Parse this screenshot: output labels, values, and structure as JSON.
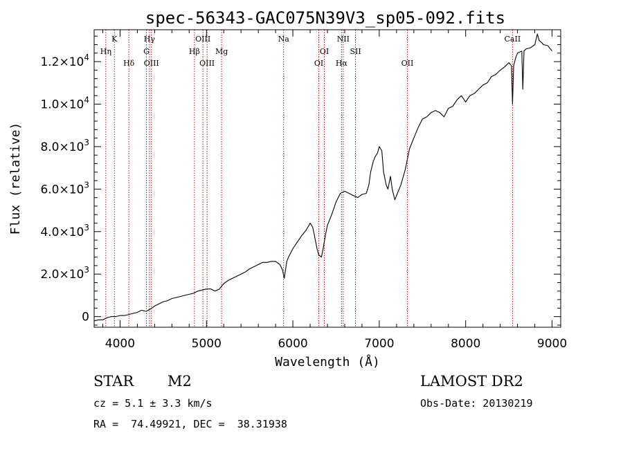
{
  "chart_data": {
    "type": "line",
    "title": "spec-56343-GAC075N39V3_sp05-092.fits",
    "xlabel": "Wavelength (Å)",
    "ylabel": "Flux (relative)",
    "xlim": [
      3700,
      9100
    ],
    "ylim": [
      -500,
      13500
    ],
    "x_ticks": [
      {
        "value": 4000,
        "label": "4000"
      },
      {
        "value": 5000,
        "label": "5000"
      },
      {
        "value": 6000,
        "label": "6000"
      },
      {
        "value": 7000,
        "label": "7000"
      },
      {
        "value": 8000,
        "label": "8000"
      },
      {
        "value": 9000,
        "label": "9000"
      }
    ],
    "y_ticks": [
      {
        "value": 0,
        "mant": "0",
        "exp": ""
      },
      {
        "value": 2000,
        "mant": "2.0×10",
        "exp": "3"
      },
      {
        "value": 4000,
        "mant": "4.0×10",
        "exp": "3"
      },
      {
        "value": 6000,
        "mant": "6.0×10",
        "exp": "3"
      },
      {
        "value": 8000,
        "mant": "8.0×10",
        "exp": "3"
      },
      {
        "value": 10000,
        "mant": "1.0×10",
        "exp": "4"
      },
      {
        "value": 12000,
        "mant": "1.2×10",
        "exp": "4"
      }
    ],
    "grid": false,
    "spectral_lines": [
      {
        "label": "Hη",
        "x": 3835,
        "row": 2
      },
      {
        "label": "K",
        "x": 3934,
        "row": 1
      },
      {
        "label": "Hδ",
        "x": 4102,
        "row": 3
      },
      {
        "label": "Hγ",
        "x": 4340,
        "row": 1
      },
      {
        "label": "G",
        "x": 4305,
        "row": 2
      },
      {
        "label": "OIII",
        "x": 4363,
        "row": 3
      },
      {
        "label": "OIII",
        "x": 4959,
        "row": 1
      },
      {
        "label": "Hβ",
        "x": 4861,
        "row": 2
      },
      {
        "label": "OIII",
        "x": 5007,
        "row": 3
      },
      {
        "label": "Mg",
        "x": 5175,
        "row": 2
      },
      {
        "label": "Na",
        "x": 5893,
        "row": 1
      },
      {
        "label": "OI",
        "x": 6364,
        "row": 2
      },
      {
        "label": "OI",
        "x": 6300,
        "row": 3
      },
      {
        "label": "NII",
        "x": 6583,
        "row": 1
      },
      {
        "label": "Hα",
        "x": 6563,
        "row": 3
      },
      {
        "label": "SII",
        "x": 6725,
        "row": 2
      },
      {
        "label": "OII",
        "x": 7325,
        "row": 3
      },
      {
        "label": "CaII",
        "x": 8542,
        "row": 1
      }
    ],
    "series": [
      {
        "x": [
          3700,
          3750,
          3800,
          3850,
          3900,
          3950,
          4000,
          4050,
          4100,
          4150,
          4200,
          4250,
          4300,
          4350,
          4400,
          4450,
          4500,
          4550,
          4600,
          4650,
          4700,
          4750,
          4800,
          4850,
          4900,
          4950,
          5000,
          5050,
          5100,
          5150,
          5200,
          5250,
          5300,
          5350,
          5400,
          5450,
          5500,
          5550,
          5600,
          5650,
          5700,
          5750,
          5800,
          5850,
          5880,
          5900,
          5930,
          5950,
          6000,
          6050,
          6100,
          6150,
          6180,
          6200,
          6230,
          6250,
          6280,
          6300,
          6330,
          6350,
          6380,
          6400,
          6450,
          6500,
          6550,
          6600,
          6650,
          6700,
          6750,
          6800,
          6850,
          6880,
          6900,
          6930,
          6950,
          6980,
          7000,
          7030,
          7050,
          7080,
          7100,
          7130,
          7150,
          7180,
          7200,
          7250,
          7300,
          7350,
          7400,
          7450,
          7500,
          7550,
          7600,
          7650,
          7700,
          7750,
          7800,
          7850,
          7900,
          7950,
          8000,
          8050,
          8100,
          8150,
          8200,
          8250,
          8300,
          8350,
          8400,
          8450,
          8500,
          8530,
          8542,
          8555,
          8580,
          8600,
          8650,
          8662,
          8675,
          8700,
          8750,
          8800,
          8830,
          8850,
          8880,
          8900,
          8950,
          9000
        ],
        "y": [
          -200,
          -150,
          -150,
          -50,
          0,
          0,
          50,
          50,
          100,
          150,
          200,
          300,
          250,
          350,
          500,
          600,
          700,
          750,
          850,
          900,
          950,
          1000,
          1050,
          1100,
          1200,
          1250,
          1300,
          1300,
          1200,
          1300,
          1550,
          1700,
          1800,
          1900,
          2000,
          2100,
          2250,
          2350,
          2450,
          2550,
          2550,
          2600,
          2600,
          2450,
          2200,
          1800,
          2600,
          2800,
          3200,
          3500,
          3800,
          4050,
          4250,
          4400,
          4200,
          3800,
          3200,
          2900,
          2800,
          3200,
          3900,
          4300,
          4800,
          5400,
          5800,
          5900,
          5800,
          5700,
          5600,
          5750,
          5800,
          6200,
          6800,
          7300,
          7500,
          7700,
          8000,
          7800,
          6800,
          6200,
          6000,
          6600,
          6000,
          5500,
          5700,
          6200,
          6900,
          7900,
          8400,
          8900,
          9300,
          9400,
          9600,
          9700,
          9600,
          9400,
          9800,
          9900,
          10200,
          10400,
          10100,
          10400,
          10500,
          10700,
          10900,
          11000,
          11300,
          11400,
          11600,
          11750,
          11950,
          11800,
          10000,
          11800,
          12200,
          12400,
          12500,
          10700,
          12500,
          12600,
          12650,
          12800,
          13300,
          13000,
          12900,
          12800,
          12750,
          12500
        ]
      }
    ]
  },
  "info": {
    "class_label": "STAR",
    "subclass": "M2",
    "survey": "LAMOST DR2",
    "cz": "cz = 5.1 ± 3.3 km/s",
    "obs_date": "Obs-Date: 20130219",
    "coords": "RA =  74.49921, DEC =  38.31938"
  },
  "colors": {
    "line_marker": "#cc0000",
    "spectrum": "#000000",
    "axes": "#000000"
  }
}
